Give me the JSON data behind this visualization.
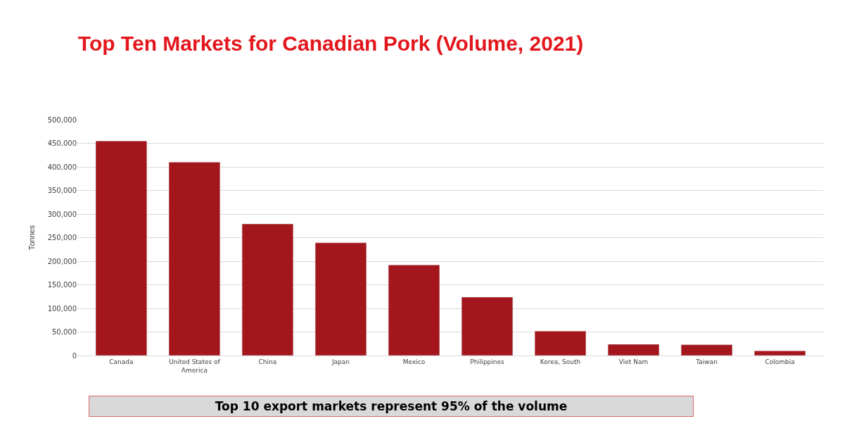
{
  "chart_data": {
    "type": "bar",
    "title": "Top Ten Markets for Canadian Pork (Volume, 2021)",
    "ylabel": "Tonnes",
    "categories": [
      "Canada",
      "United States of America",
      "China",
      "Japan",
      "Mexico",
      "Philippines",
      "Korea, South",
      "Viet Nam",
      "Taiwan",
      "Colombia"
    ],
    "values": [
      455000,
      410000,
      279000,
      239000,
      192000,
      124000,
      52000,
      24000,
      23000,
      10000
    ],
    "color": "#a3161c",
    "ylim": [
      0,
      500000
    ],
    "yticks": [
      {
        "value": 0,
        "label": "0"
      },
      {
        "value": 50000,
        "label": "50,000"
      },
      {
        "value": 100000,
        "label": "100,000"
      },
      {
        "value": 150000,
        "label": "150,000"
      },
      {
        "value": 200000,
        "label": "200,000"
      },
      {
        "value": 250000,
        "label": "250,000"
      },
      {
        "value": 300000,
        "label": "300,000"
      },
      {
        "value": 350000,
        "label": "350,000"
      },
      {
        "value": 400000,
        "label": "400,000"
      },
      {
        "value": 450000,
        "label": "450,000"
      },
      {
        "value": 500000,
        "label": "500,000"
      }
    ],
    "grid": "y",
    "legend": false,
    "annotations": [
      "Top 10 export markets represent 95% of the volume"
    ]
  }
}
